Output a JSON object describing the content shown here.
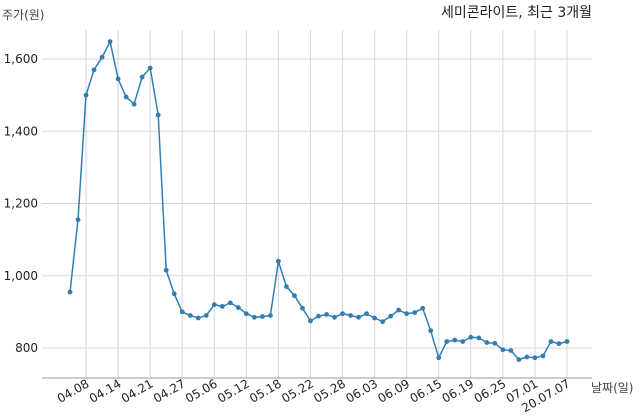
{
  "chart_data": {
    "type": "line",
    "title": "세미콘라이트, 최근 3개월",
    "ylabel": "주가(원)",
    "xlabel": "날짜(일)",
    "ylim": [
      720,
      1760
    ],
    "yticks": [
      800,
      1000,
      1200,
      1400,
      1600
    ],
    "ytick_labels": [
      "800",
      "1,000",
      "1,200",
      "1,400",
      "1,600"
    ],
    "xtick_labels": [
      "04.08",
      "04.14",
      "04.21",
      "04.27",
      "05.06",
      "05.12",
      "05.18",
      "05.22",
      "05.28",
      "06.03",
      "06.09",
      "06.15",
      "06.19",
      "06.25",
      "07.01",
      "20.07.07"
    ],
    "xtick_index": [
      2,
      6,
      10,
      14,
      18,
      22,
      26,
      30,
      34,
      38,
      42,
      46,
      50,
      54,
      58,
      62
    ],
    "grid": true,
    "line_color": "#2f7fb4",
    "series": [
      {
        "values": [
          955,
          1155,
          1500,
          1570,
          1605,
          1648,
          1545,
          1495,
          1475,
          1550,
          1575,
          1445,
          1015,
          950,
          900,
          890,
          883,
          890,
          920,
          915,
          925,
          912,
          895,
          885,
          887,
          890,
          1040,
          970,
          945,
          910,
          875,
          888,
          893,
          885,
          895,
          890,
          885,
          895,
          883,
          873,
          888,
          905,
          895,
          898,
          910,
          848,
          773,
          818,
          822,
          818,
          830,
          828,
          815,
          813,
          795,
          793,
          768,
          775,
          773,
          778,
          818,
          812,
          818
        ]
      }
    ]
  }
}
